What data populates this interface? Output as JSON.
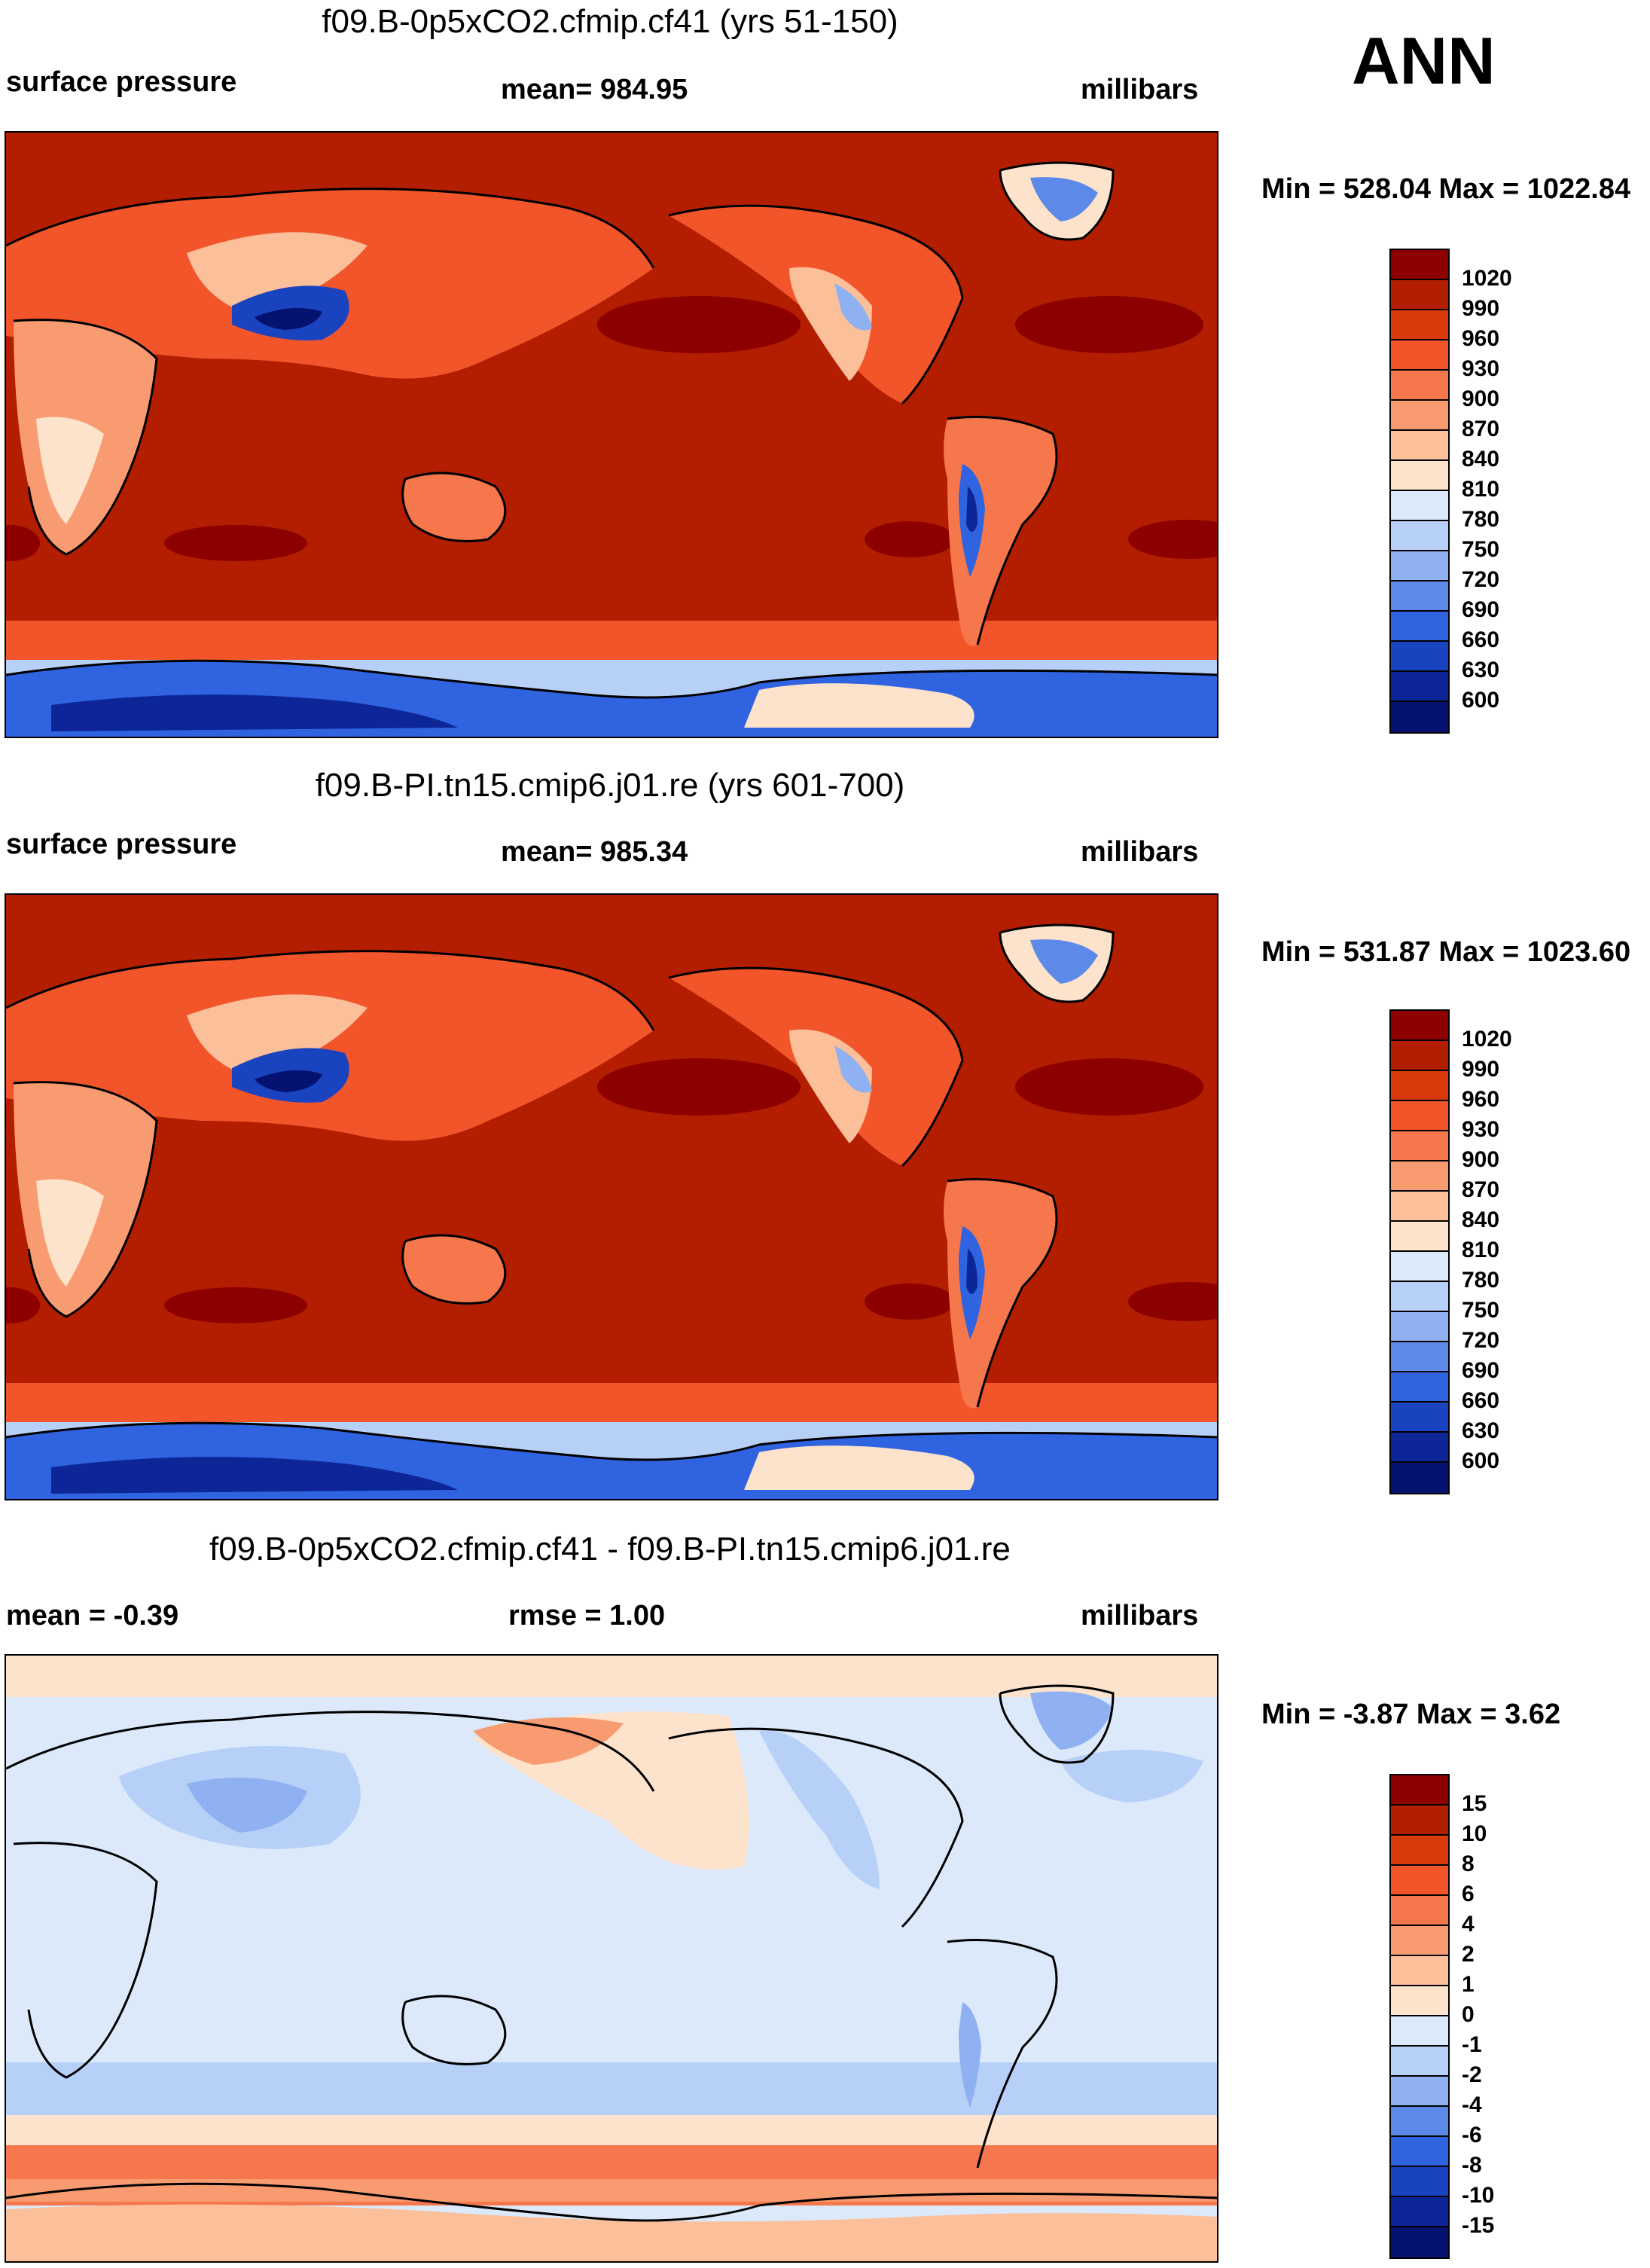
{
  "season": "ANN",
  "panels": [
    {
      "title": "f09.B-0p5xCO2.cfmip.cf41 (yrs 51-150)",
      "left_label": "surface pressure",
      "center_label": "mean= 984.95",
      "right_label": "millibars",
      "minmax": "Min = 528.04 Max = 1022.84",
      "colorbar": {
        "ticks": [
          "1020",
          "990",
          "960",
          "930",
          "900",
          "870",
          "840",
          "810",
          "780",
          "750",
          "720",
          "690",
          "660",
          "630",
          "600"
        ],
        "colors": [
          "#8c0000",
          "#b31e00",
          "#d83a0a",
          "#f2552a",
          "#f5774b",
          "#f89b70",
          "#fbbf9a",
          "#fde3cc",
          "#dbe9fb",
          "#b7d0f7",
          "#8fb1f1",
          "#5d8ae8",
          "#2f63e0",
          "#1a43c0",
          "#0c2697",
          "#05126f"
        ]
      }
    },
    {
      "title": "f09.B-PI.tn15.cmip6.j01.re (yrs 601-700)",
      "left_label": "surface pressure",
      "center_label": "mean= 985.34",
      "right_label": "millibars",
      "minmax": "Min = 531.87 Max = 1023.60",
      "colorbar": {
        "ticks": [
          "1020",
          "990",
          "960",
          "930",
          "900",
          "870",
          "840",
          "810",
          "780",
          "750",
          "720",
          "690",
          "660",
          "630",
          "600"
        ],
        "colors": [
          "#8c0000",
          "#b31e00",
          "#d83a0a",
          "#f2552a",
          "#f5774b",
          "#f89b70",
          "#fbbf9a",
          "#fde3cc",
          "#dbe9fb",
          "#b7d0f7",
          "#8fb1f1",
          "#5d8ae8",
          "#2f63e0",
          "#1a43c0",
          "#0c2697",
          "#05126f"
        ]
      }
    },
    {
      "title": "f09.B-0p5xCO2.cfmip.cf41 - f09.B-PI.tn15.cmip6.j01.re",
      "left_label": "mean =  -0.39",
      "center_label": "rmse =   1.00",
      "right_label": "millibars",
      "minmax": "Min =  -3.87 Max =   3.62",
      "colorbar": {
        "ticks": [
          "15",
          "10",
          "8",
          "6",
          "4",
          "2",
          "1",
          "0",
          "-1",
          "-2",
          "-4",
          "-6",
          "-8",
          "-10",
          "-15"
        ],
        "colors": [
          "#8c0000",
          "#b31e00",
          "#d83a0a",
          "#f2552a",
          "#f5774b",
          "#f89b70",
          "#fbbf9a",
          "#fde3cc",
          "#dbe9fb",
          "#b7d0f7",
          "#8fb1f1",
          "#5d8ae8",
          "#2f63e0",
          "#1a43c0",
          "#0c2697",
          "#05126f"
        ]
      }
    }
  ]
}
